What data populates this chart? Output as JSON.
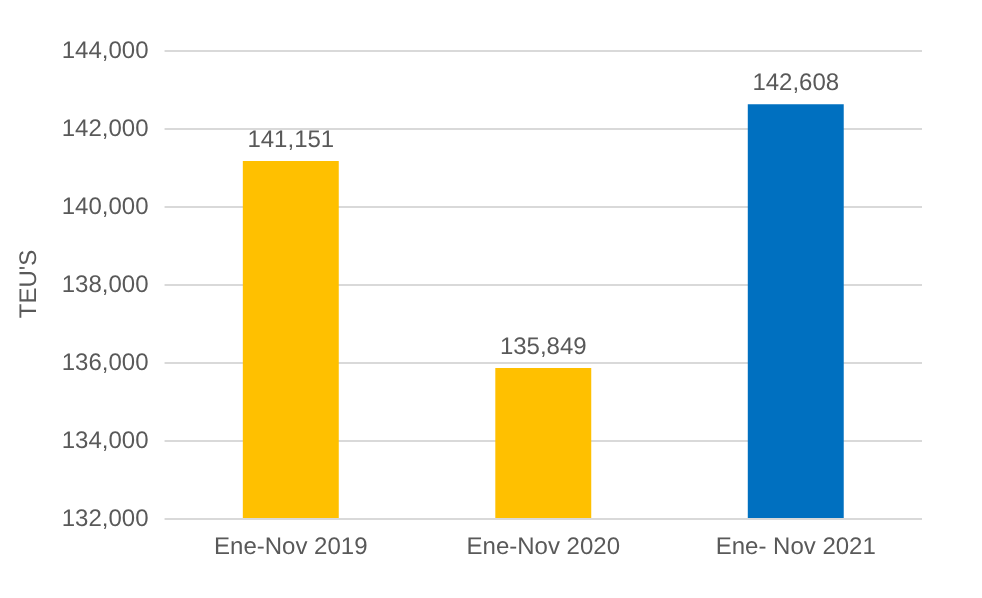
{
  "chart_data": {
    "type": "bar",
    "ylabel": "TEU'S",
    "categories": [
      "Ene-Nov 2019",
      "Ene-Nov 2020",
      "Ene- Nov 2021"
    ],
    "values": [
      141151,
      135849,
      142608
    ],
    "value_labels": [
      "141,151",
      "135,849",
      "142,608"
    ],
    "colors": [
      "#ffc000",
      "#ffc000",
      "#0070c0"
    ],
    "ylim": [
      132000,
      144000
    ],
    "yticks": [
      {
        "value": 132000,
        "label": "132,000"
      },
      {
        "value": 134000,
        "label": "134,000"
      },
      {
        "value": 136000,
        "label": "136,000"
      },
      {
        "value": 138000,
        "label": "138,000"
      },
      {
        "value": 140000,
        "label": "140,000"
      },
      {
        "value": 142000,
        "label": "142,000"
      },
      {
        "value": 144000,
        "label": "144,000"
      }
    ],
    "grid": "y"
  }
}
